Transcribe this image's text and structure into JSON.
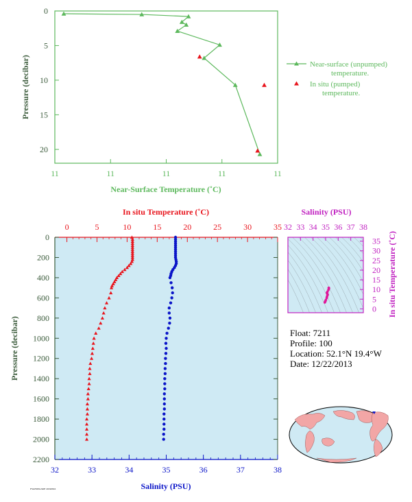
{
  "colors": {
    "near_surface": "#5cb85c",
    "in_situ": "#e8141c",
    "salinity": "#0a14c8",
    "salinity_axis": "#c020c0",
    "panel_bg": "#cfeaf4",
    "axis_text": "#3a5a3a"
  },
  "float_info": {
    "float": "Float:  7211",
    "profile": "Profile:  100",
    "location": "Location:  52.1°N  19.4°W",
    "date": "Date:  12/22/2013"
  },
  "chart_data": [
    {
      "type": "line",
      "xlabel": "Near-Surface Temperature (˚C)",
      "ylabel": "Pressure (decibar)",
      "x_tick_labels": [
        "11",
        "11",
        "11",
        "11",
        "11"
      ],
      "y_ticks": [
        0,
        5,
        10,
        15,
        20
      ],
      "ylim": [
        0,
        22
      ],
      "xlim": [
        11.0,
        12.0
      ],
      "y_inverted": true,
      "legend": [
        {
          "marker": "line-triangle",
          "line1": "Near-surface (unpumped)",
          "line2": "temperature."
        },
        {
          "marker": "triangle",
          "line1": "In situ (pumped)",
          "line2": "temperature."
        }
      ],
      "series": [
        {
          "name": "Near-surface (unpumped) temperature.",
          "x": [
            11.04,
            11.39,
            11.6,
            11.57,
            11.59,
            11.55,
            11.74,
            11.67,
            11.81,
            11.92
          ],
          "y": [
            0.4,
            0.5,
            0.8,
            1.6,
            2.0,
            2.9,
            4.9,
            6.8,
            10.7,
            20.7
          ]
        },
        {
          "name": "In situ (pumped) temperature.",
          "x": [
            11.65,
            11.94,
            11.91
          ],
          "y": [
            6.6,
            10.7,
            20.2
          ]
        }
      ]
    },
    {
      "type": "scatter",
      "ylabel": "Pressure (decibar)",
      "top_axis_label": "In situ Temperature (˚C)",
      "bottom_axis_label": "Salinity (PSU)",
      "y_ticks": [
        0,
        200,
        400,
        600,
        800,
        1000,
        1200,
        1400,
        1600,
        1800,
        2000,
        2200
      ],
      "temp_ticks": [
        0,
        5,
        10,
        15,
        20,
        25,
        30,
        35
      ],
      "sal_ticks": [
        32,
        33,
        34,
        35,
        36,
        37,
        38
      ],
      "ylim": [
        0,
        2200
      ],
      "temp_lim": [
        -2,
        35
      ],
      "sal_lim": [
        32,
        38
      ],
      "series": [
        {
          "name": "In situ Temperature",
          "points": [
            [
              10.8,
              0
            ],
            [
              10.9,
              20
            ],
            [
              10.9,
              40
            ],
            [
              10.9,
              60
            ],
            [
              10.9,
              80
            ],
            [
              10.9,
              100
            ],
            [
              10.9,
              120
            ],
            [
              10.9,
              140
            ],
            [
              10.9,
              160
            ],
            [
              10.9,
              180
            ],
            [
              10.9,
              200
            ],
            [
              10.9,
              220
            ],
            [
              10.8,
              240
            ],
            [
              10.6,
              260
            ],
            [
              10.3,
              280
            ],
            [
              10.0,
              300
            ],
            [
              9.6,
              320
            ],
            [
              9.2,
              340
            ],
            [
              8.9,
              360
            ],
            [
              8.6,
              380
            ],
            [
              8.3,
              400
            ],
            [
              8.1,
              420
            ],
            [
              7.9,
              440
            ],
            [
              7.7,
              460
            ],
            [
              7.5,
              480
            ],
            [
              7.4,
              500
            ],
            [
              7.3,
              550
            ],
            [
              7.0,
              600
            ],
            [
              6.6,
              650
            ],
            [
              6.3,
              700
            ],
            [
              6.1,
              750
            ],
            [
              5.9,
              800
            ],
            [
              5.6,
              850
            ],
            [
              5.3,
              900
            ],
            [
              4.8,
              950
            ],
            [
              4.5,
              1000
            ],
            [
              4.4,
              1050
            ],
            [
              4.3,
              1100
            ],
            [
              4.2,
              1150
            ],
            [
              4.1,
              1200
            ],
            [
              3.9,
              1250
            ],
            [
              3.8,
              1300
            ],
            [
              3.8,
              1350
            ],
            [
              3.7,
              1400
            ],
            [
              3.7,
              1450
            ],
            [
              3.6,
              1500
            ],
            [
              3.5,
              1550
            ],
            [
              3.5,
              1600
            ],
            [
              3.4,
              1650
            ],
            [
              3.4,
              1700
            ],
            [
              3.4,
              1750
            ],
            [
              3.3,
              1800
            ],
            [
              3.3,
              1850
            ],
            [
              3.3,
              1900
            ],
            [
              3.3,
              1950
            ],
            [
              3.3,
              2000
            ]
          ]
        },
        {
          "name": "Salinity",
          "points": [
            [
              35.25,
              0
            ],
            [
              35.25,
              20
            ],
            [
              35.25,
              40
            ],
            [
              35.25,
              60
            ],
            [
              35.25,
              80
            ],
            [
              35.25,
              100
            ],
            [
              35.25,
              120
            ],
            [
              35.25,
              140
            ],
            [
              35.25,
              160
            ],
            [
              35.25,
              180
            ],
            [
              35.25,
              200
            ],
            [
              35.26,
              220
            ],
            [
              35.27,
              240
            ],
            [
              35.27,
              260
            ],
            [
              35.25,
              280
            ],
            [
              35.22,
              300
            ],
            [
              35.18,
              320
            ],
            [
              35.15,
              340
            ],
            [
              35.13,
              360
            ],
            [
              35.12,
              380
            ],
            [
              35.1,
              400
            ],
            [
              35.13,
              450
            ],
            [
              35.16,
              500
            ],
            [
              35.17,
              550
            ],
            [
              35.15,
              600
            ],
            [
              35.12,
              650
            ],
            [
              35.08,
              700
            ],
            [
              35.08,
              750
            ],
            [
              35.1,
              800
            ],
            [
              35.09,
              850
            ],
            [
              35.06,
              900
            ],
            [
              35.02,
              950
            ],
            [
              35.0,
              1000
            ],
            [
              34.99,
              1050
            ],
            [
              35.0,
              1100
            ],
            [
              34.99,
              1150
            ],
            [
              34.98,
              1200
            ],
            [
              34.98,
              1250
            ],
            [
              34.97,
              1300
            ],
            [
              34.97,
              1350
            ],
            [
              34.96,
              1400
            ],
            [
              34.96,
              1450
            ],
            [
              34.96,
              1500
            ],
            [
              34.95,
              1550
            ],
            [
              34.95,
              1600
            ],
            [
              34.95,
              1650
            ],
            [
              34.95,
              1700
            ],
            [
              34.94,
              1750
            ],
            [
              34.94,
              1800
            ],
            [
              34.94,
              1850
            ],
            [
              34.94,
              1900
            ],
            [
              34.93,
              1950
            ],
            [
              34.93,
              2000
            ]
          ]
        }
      ]
    },
    {
      "type": "scatter",
      "top_axis_label": "Salinity (PSU)",
      "right_axis_label": "In situ Temperature (˚C)",
      "x_ticks": [
        32,
        33,
        34,
        35,
        36,
        37,
        38
      ],
      "y_ticks": [
        0,
        5,
        10,
        15,
        20,
        25,
        30,
        35
      ],
      "xlim": [
        32,
        38
      ],
      "ylim": [
        -2,
        37
      ],
      "series": [
        {
          "name": "T-S",
          "points": [
            [
              34.93,
              3.3
            ],
            [
              34.95,
              3.5
            ],
            [
              34.96,
              3.7
            ],
            [
              34.98,
              3.9
            ],
            [
              35.0,
              4.3
            ],
            [
              35.02,
              4.6
            ],
            [
              35.08,
              5.6
            ],
            [
              35.1,
              6.1
            ],
            [
              35.12,
              6.6
            ],
            [
              35.17,
              7.3
            ],
            [
              35.13,
              7.9
            ],
            [
              35.1,
              8.3
            ],
            [
              35.15,
              8.9
            ],
            [
              35.22,
              9.8
            ],
            [
              35.25,
              10.3
            ],
            [
              35.27,
              10.6
            ],
            [
              35.25,
              10.9
            ],
            [
              35.25,
              10.9
            ]
          ]
        }
      ]
    }
  ]
}
